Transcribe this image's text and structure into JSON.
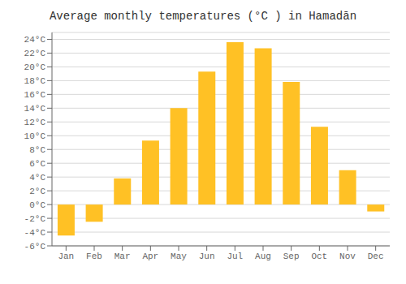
{
  "chart_data": {
    "type": "bar",
    "title": "Average monthly temperatures (°C ) in Hamadān",
    "categories": [
      "Jan",
      "Feb",
      "Mar",
      "Apr",
      "May",
      "Jun",
      "Jul",
      "Aug",
      "Sep",
      "Oct",
      "Nov",
      "Dec"
    ],
    "values": [
      -4.5,
      -2.5,
      3.8,
      9.3,
      14.0,
      19.3,
      23.6,
      22.7,
      17.8,
      11.3,
      5.0,
      -1.0
    ],
    "color": "#FFC125",
    "ylim": [
      -6,
      25
    ],
    "yticks": [
      {
        "value": -6,
        "label": "-6°C"
      },
      {
        "value": -4,
        "label": "-4°C"
      },
      {
        "value": -2,
        "label": "-2°C"
      },
      {
        "value": 0,
        "label": "0°C"
      },
      {
        "value": 2,
        "label": "2°C"
      },
      {
        "value": 4,
        "label": "4°C"
      },
      {
        "value": 6,
        "label": "6°C"
      },
      {
        "value": 8,
        "label": "8°C"
      },
      {
        "value": 10,
        "label": "10°C"
      },
      {
        "value": 12,
        "label": "12°C"
      },
      {
        "value": 14,
        "label": "14°C"
      },
      {
        "value": 16,
        "label": "16°C"
      },
      {
        "value": 18,
        "label": "18°C"
      },
      {
        "value": 20,
        "label": "20°C"
      },
      {
        "value": 22,
        "label": "22°C"
      },
      {
        "value": 24,
        "label": "24°C"
      }
    ],
    "grid": true
  }
}
